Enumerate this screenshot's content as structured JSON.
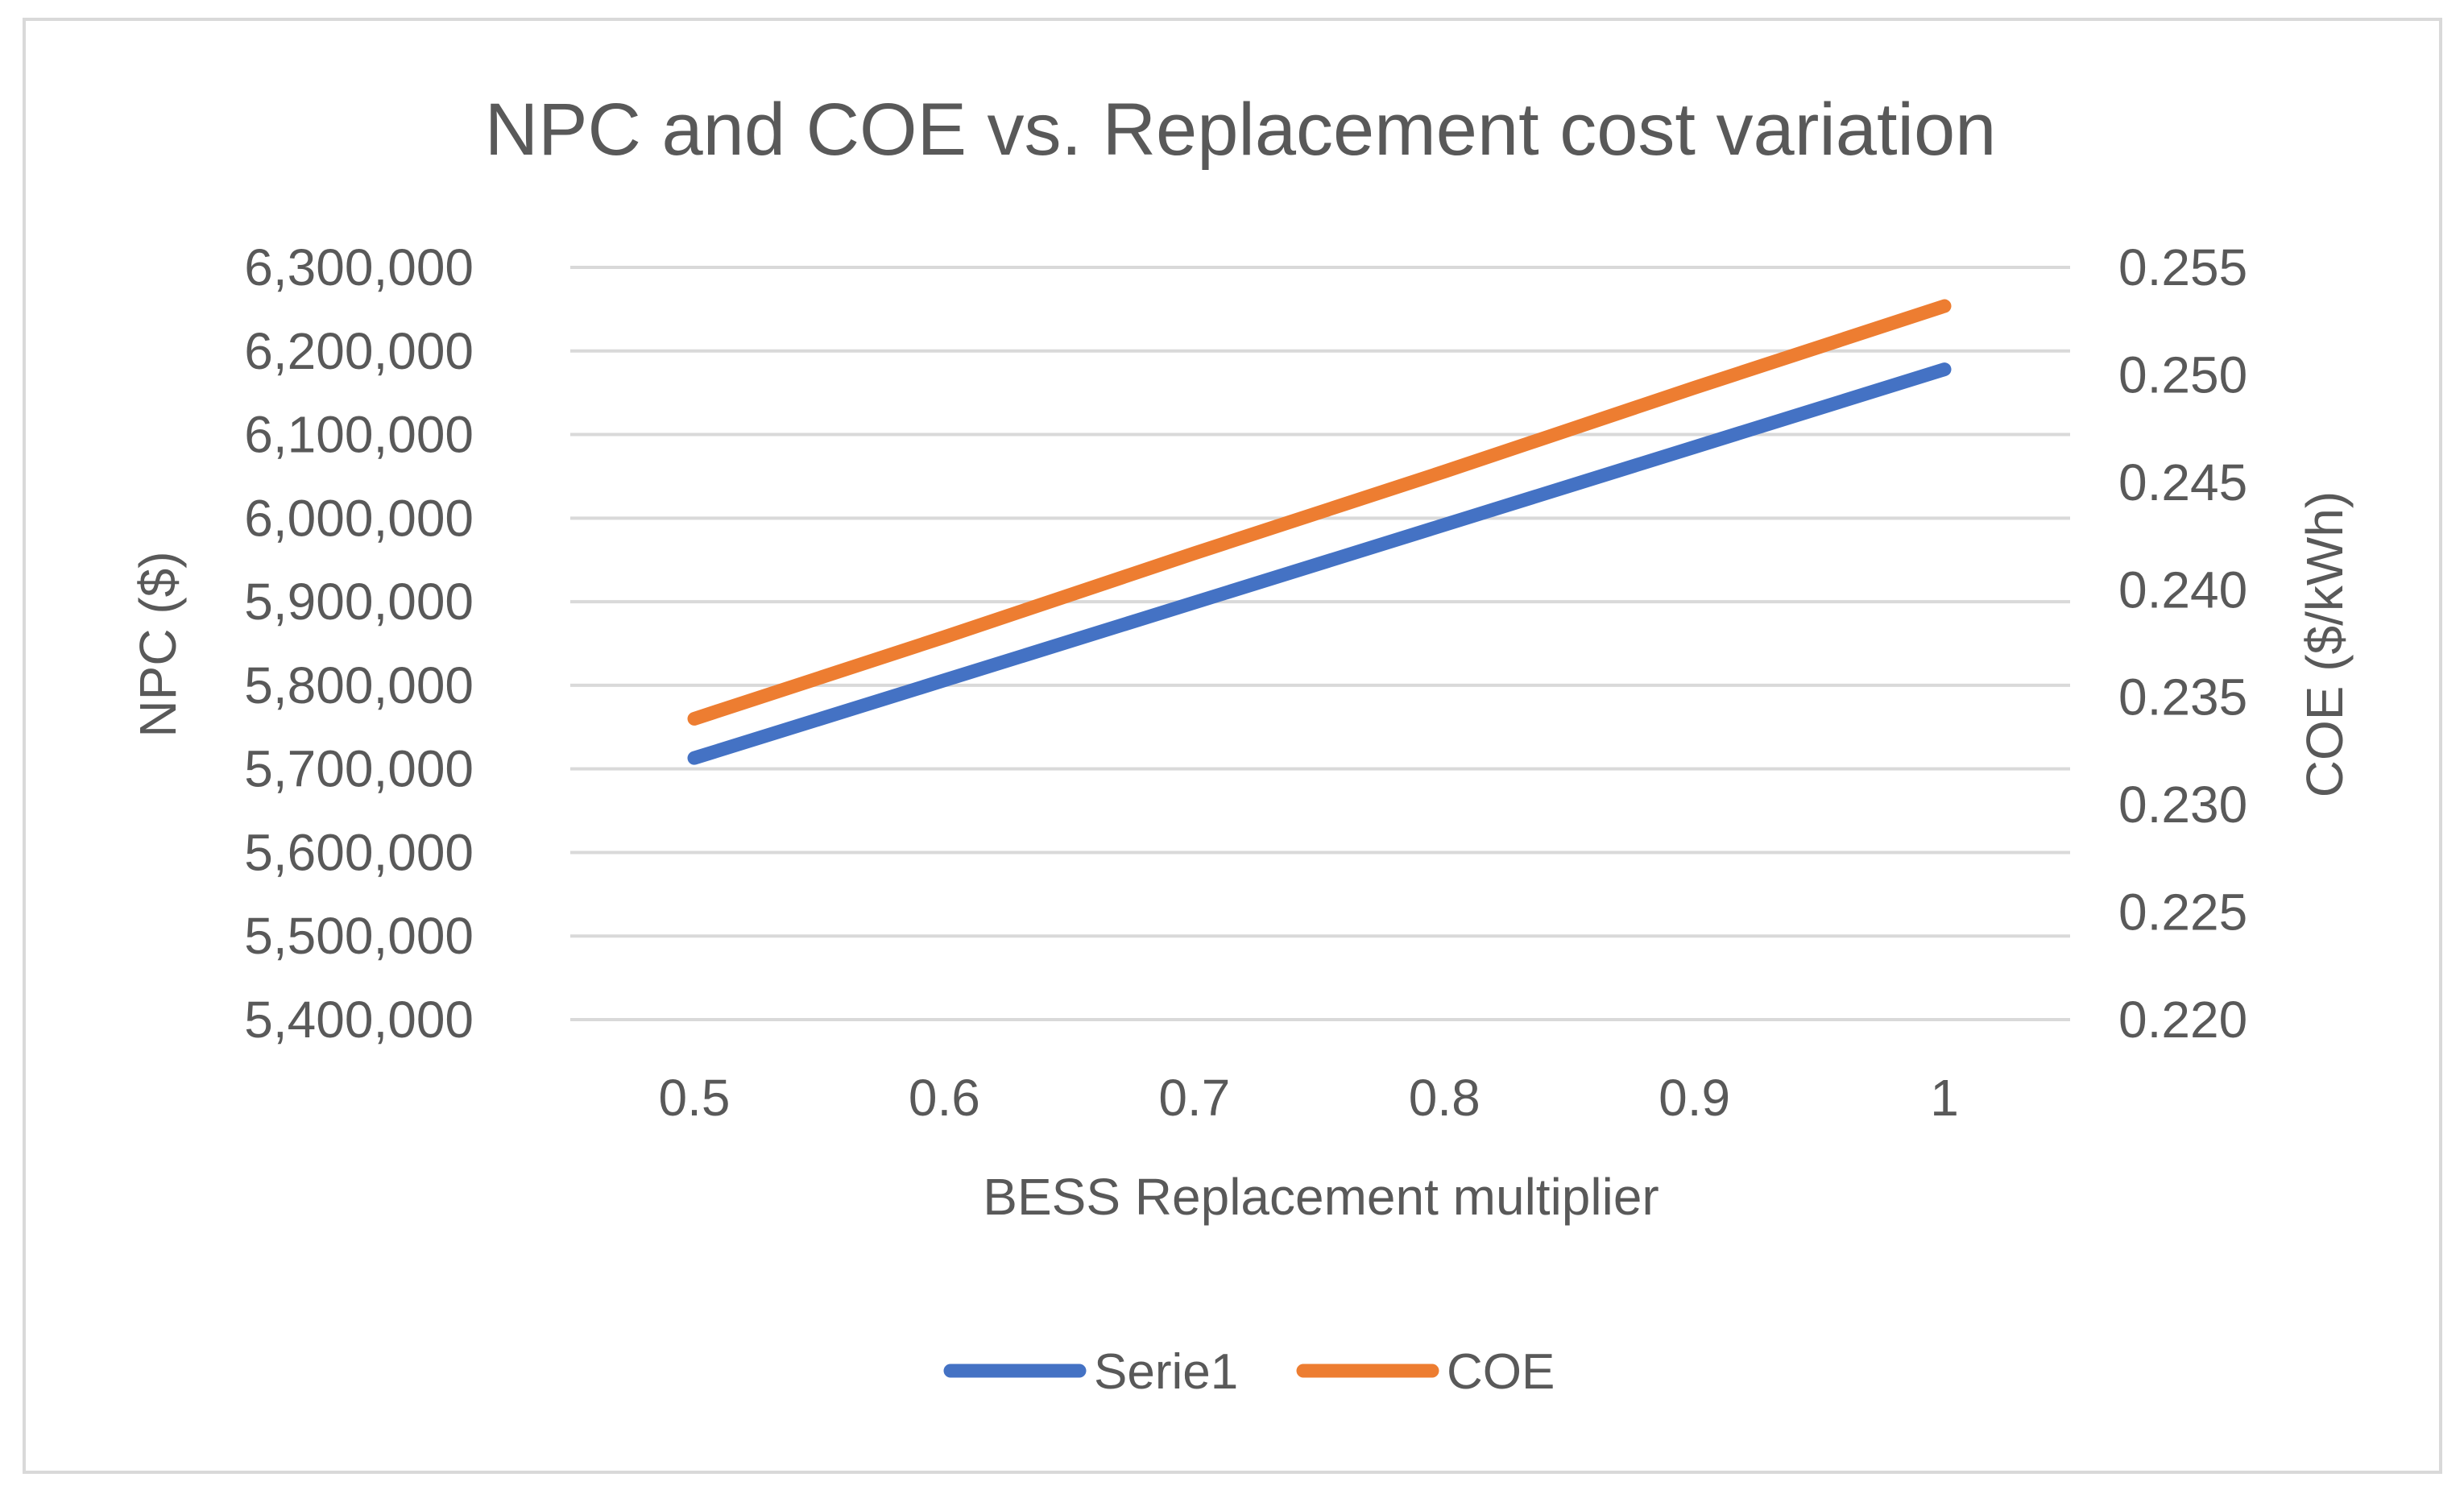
{
  "chart_data": {
    "type": "line",
    "title": "NPC and COE vs. Replacement cost variation",
    "xlabel": "BESS Replacement multiplier",
    "ylabel": "NPC ($)",
    "y2label": "COE ($/kWh)",
    "x": [
      0.5,
      0.6,
      0.7,
      0.8,
      0.9,
      1
    ],
    "x_tick_labels": [
      "0.5",
      "0.6",
      "0.7",
      "0.8",
      "0.9",
      "1"
    ],
    "ylim": [
      5400000,
      6300000
    ],
    "y_ticks": [
      6300000,
      6200000,
      6100000,
      6000000,
      5900000,
      5800000,
      5700000,
      5600000,
      5500000,
      5400000
    ],
    "y_tick_labels": [
      "6,300,000",
      "6,200,000",
      "6,100,000",
      "6,000,000",
      "5,900,000",
      "5,800,000",
      "5,700,000",
      "5,600,000",
      "5,500,000",
      "5,400,000"
    ],
    "y2lim": [
      0.22,
      0.255
    ],
    "y2_ticks": [
      0.255,
      0.25,
      0.245,
      0.24,
      0.235,
      0.23,
      0.225,
      0.22
    ],
    "y2_tick_labels": [
      "0.255",
      "0.250",
      "0.245",
      "0.240",
      "0.235",
      "0.230",
      "0.225",
      "0.220"
    ],
    "grid": true,
    "legend_position": "bottom",
    "series": [
      {
        "name": "Serie1",
        "axis": "left",
        "color": "#4472c4",
        "values": [
          5713000,
          5806000,
          5899000,
          5992000,
          6085000,
          6178000
        ]
      },
      {
        "name": "COE",
        "axis": "right",
        "color": "#ed7d31",
        "values": [
          0.234,
          0.2378,
          0.2417,
          0.2455,
          0.2494,
          0.2532
        ]
      }
    ]
  }
}
